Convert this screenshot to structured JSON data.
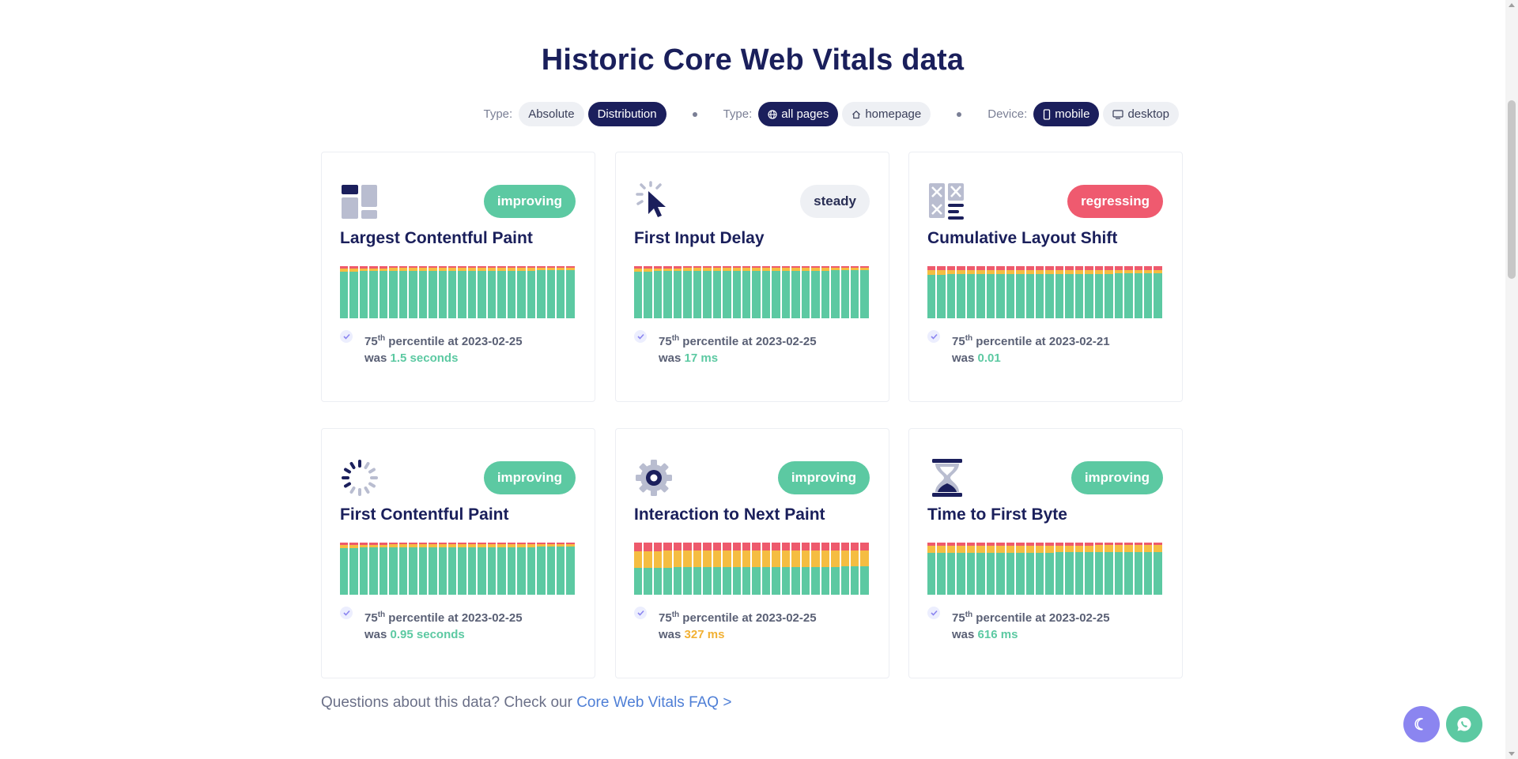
{
  "page": {
    "title": "Historic Core Web Vitals data",
    "faq_text": "Questions about this data? Check our ",
    "faq_link": "Core Web Vitals FAQ >"
  },
  "filters": {
    "type_label": "Type:",
    "type_options": [
      "Absolute",
      "Distribution"
    ],
    "type_selected": "Distribution",
    "scope_label": "Type:",
    "scope_options": [
      "all pages",
      "homepage"
    ],
    "scope_selected": "all pages",
    "device_label": "Device:",
    "device_options": [
      "mobile",
      "desktop"
    ],
    "device_selected": "mobile"
  },
  "cards": [
    {
      "title": "Largest Contentful Paint",
      "status": "improving",
      "icon": "layout-icon",
      "sup": "th",
      "pct_prefix": "75",
      "pct_text": " percentile at 2023-02-25",
      "was": "was ",
      "value": "1.5 seconds",
      "value_color": "green",
      "distribution": {
        "poor": 4,
        "needs_improvement": 6,
        "good": 90
      }
    },
    {
      "title": "First Input Delay",
      "status": "steady",
      "icon": "cursor-click-icon",
      "sup": "th",
      "pct_prefix": "75",
      "pct_text": " percentile at 2023-02-25",
      "was": "was ",
      "value": "17 ms",
      "value_color": "green",
      "distribution": {
        "poor": 4,
        "needs_improvement": 6,
        "good": 90
      }
    },
    {
      "title": "Cumulative Layout Shift",
      "status": "regressing",
      "icon": "layout-shift-icon",
      "sup": "th",
      "pct_prefix": "75",
      "pct_text": " percentile at 2023-02-21",
      "was": "was ",
      "value": "0.01",
      "value_color": "green",
      "distribution": {
        "poor": 8,
        "needs_improvement": 8,
        "good": 84
      }
    },
    {
      "title": "First Contentful Paint",
      "status": "improving",
      "icon": "spinner-icon",
      "sup": "th",
      "pct_prefix": "75",
      "pct_text": " percentile at 2023-02-25",
      "was": "was ",
      "value": "0.95 seconds",
      "value_color": "green",
      "distribution": {
        "poor": 4,
        "needs_improvement": 6,
        "good": 90
      }
    },
    {
      "title": "Interaction to Next Paint",
      "status": "improving",
      "icon": "gear-icon",
      "sup": "th",
      "pct_prefix": "75",
      "pct_text": " percentile at 2023-02-25",
      "was": "was ",
      "value": "327 ms",
      "value_color": "orange",
      "distribution": {
        "poor": 16,
        "needs_improvement": 32,
        "good": 52
      }
    },
    {
      "title": "Time to First Byte",
      "status": "improving",
      "icon": "hourglass-icon",
      "sup": "th",
      "pct_prefix": "75",
      "pct_text": " percentile at 2023-02-25",
      "was": "was ",
      "value": "616 ms",
      "value_color": "green",
      "distribution": {
        "poor": 6,
        "needs_improvement": 14,
        "good": 80
      }
    }
  ],
  "colors": {
    "poor": "#ee5a6c",
    "needs_improvement": "#f5bd41",
    "good": "#5cc9a2",
    "accent": "#1b1f5c"
  },
  "fabs": {
    "dark_mode": "moon-icon",
    "chat": "whatsapp-icon"
  }
}
